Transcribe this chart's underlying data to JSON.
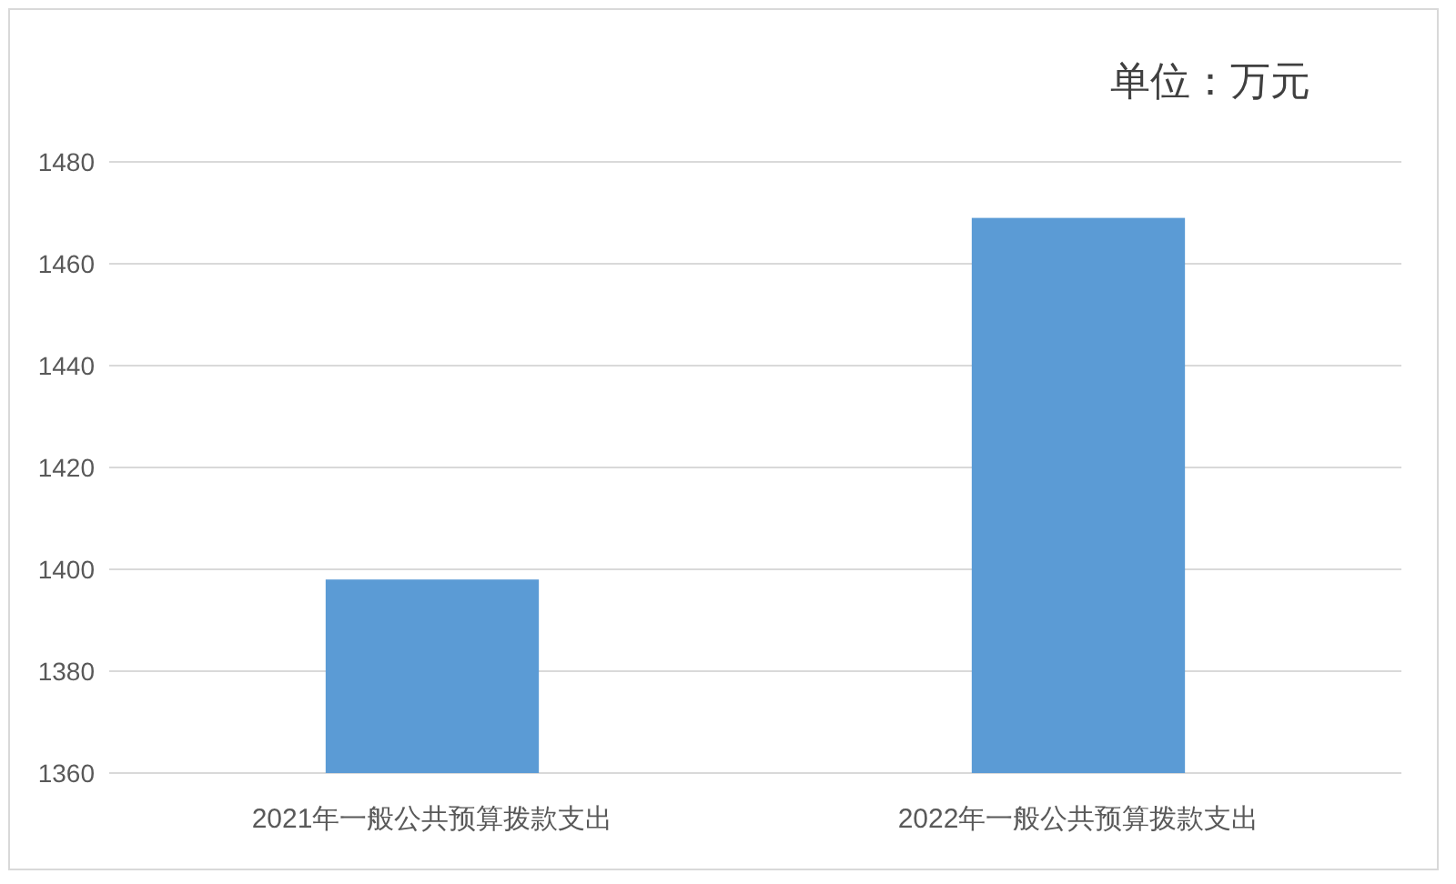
{
  "chart_data": {
    "type": "bar",
    "title": "单位：万元",
    "categories": [
      "2021年一般公共预算拨款支出",
      "2022年一般公共预算拨款支出"
    ],
    "values": [
      1398,
      1469
    ],
    "color": "#5b9bd5",
    "ylim": [
      1360,
      1480
    ],
    "yticks": [
      1360,
      1380,
      1400,
      1420,
      1440,
      1460,
      1480
    ],
    "grid": "y"
  }
}
